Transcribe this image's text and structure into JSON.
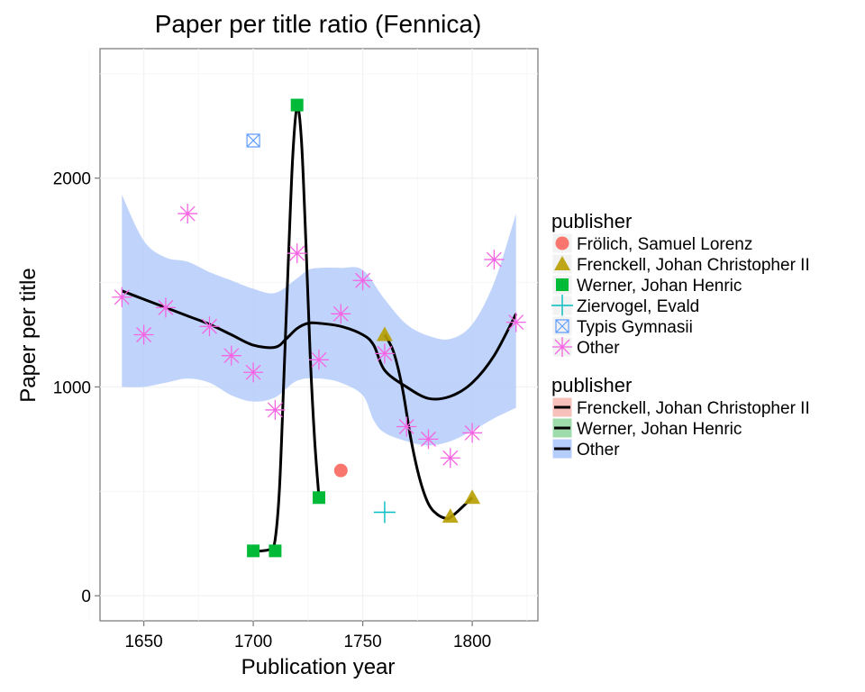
{
  "chart_data": {
    "type": "scatter",
    "title": "Paper per title ratio (Fennica)",
    "xlabel": "Publication year",
    "ylabel": "Paper per title",
    "xlim": [
      1630,
      1830
    ],
    "ylim": [
      -120,
      2620
    ],
    "x_ticks": [
      1650,
      1700,
      1750,
      1800
    ],
    "y_ticks": [
      0,
      1000,
      2000
    ],
    "grid": true,
    "legend_placement": "right",
    "colors": {
      "frolich": "#f8766d",
      "frenckell": "#b79f00",
      "werner": "#00ba38",
      "ziervogel": "#00bfc4",
      "typis": "#619cff",
      "other": "#f564e3",
      "band": "#b5cdfa",
      "line": "#000000"
    },
    "legend_points": {
      "title": "publisher",
      "entries": [
        {
          "label": "Frölich, Samuel Lorenz",
          "shape": "circle",
          "color": "#f8766d"
        },
        {
          "label": "Frenckell, Johan Christopher II",
          "shape": "triangle",
          "color": "#b79f00"
        },
        {
          "label": "Werner, Johan Henric",
          "shape": "square",
          "color": "#00ba38"
        },
        {
          "label": "Ziervogel, Evald",
          "shape": "plus",
          "color": "#00bfc4"
        },
        {
          "label": "Typis Gymnasii",
          "shape": "boxcross",
          "color": "#619cff"
        },
        {
          "label": "Other",
          "shape": "asterisk",
          "color": "#f564e3"
        }
      ]
    },
    "legend_lines": {
      "title": "publisher",
      "entries": [
        {
          "label": "Frenckell, Johan Christopher II",
          "fill": "#f8c0bb"
        },
        {
          "label": "Werner, Johan Henric",
          "fill": "#9fdcac"
        },
        {
          "label": "Other",
          "fill": "#b5cdfa"
        }
      ]
    },
    "series": [
      {
        "name": "Frölich, Samuel Lorenz",
        "shape": "circle",
        "points": [
          [
            1740,
            600
          ]
        ]
      },
      {
        "name": "Frenckell, Johan Christopher II",
        "shape": "triangle",
        "points": [
          [
            1760,
            1250
          ],
          [
            1790,
            380
          ],
          [
            1800,
            470
          ]
        ]
      },
      {
        "name": "Werner, Johan Henric",
        "shape": "square",
        "points": [
          [
            1700,
            215
          ],
          [
            1710,
            215
          ],
          [
            1720,
            2350
          ],
          [
            1730,
            470
          ]
        ]
      },
      {
        "name": "Ziervogel, Evald",
        "shape": "plus",
        "points": [
          [
            1760,
            400
          ]
        ]
      },
      {
        "name": "Typis Gymnasii",
        "shape": "boxcross",
        "points": [
          [
            1700,
            2180
          ]
        ]
      },
      {
        "name": "Other",
        "shape": "asterisk",
        "points": [
          [
            1640,
            1430
          ],
          [
            1650,
            1250
          ],
          [
            1660,
            1380
          ],
          [
            1670,
            1830
          ],
          [
            1680,
            1290
          ],
          [
            1690,
            1150
          ],
          [
            1700,
            1070
          ],
          [
            1710,
            890
          ],
          [
            1720,
            1640
          ],
          [
            1730,
            1130
          ],
          [
            1740,
            1350
          ],
          [
            1750,
            1510
          ],
          [
            1760,
            1160
          ],
          [
            1770,
            810
          ],
          [
            1780,
            750
          ],
          [
            1790,
            660
          ],
          [
            1800,
            780
          ],
          [
            1810,
            1610
          ],
          [
            1820,
            1310
          ]
        ]
      }
    ],
    "smooth": [
      {
        "name": "Other",
        "line": [
          [
            1640,
            1460
          ],
          [
            1650,
            1420
          ],
          [
            1660,
            1380
          ],
          [
            1670,
            1340
          ],
          [
            1680,
            1300
          ],
          [
            1690,
            1250
          ],
          [
            1700,
            1200
          ],
          [
            1710,
            1190
          ],
          [
            1715,
            1230
          ],
          [
            1720,
            1280
          ],
          [
            1725,
            1305
          ],
          [
            1730,
            1305
          ],
          [
            1740,
            1290
          ],
          [
            1750,
            1250
          ],
          [
            1755,
            1200
          ],
          [
            1760,
            1080
          ],
          [
            1770,
            1000
          ],
          [
            1780,
            945
          ],
          [
            1790,
            955
          ],
          [
            1800,
            1020
          ],
          [
            1810,
            1150
          ],
          [
            1820,
            1350
          ]
        ],
        "upper": [
          [
            1640,
            1920
          ],
          [
            1650,
            1700
          ],
          [
            1660,
            1620
          ],
          [
            1670,
            1600
          ],
          [
            1680,
            1550
          ],
          [
            1690,
            1510
          ],
          [
            1700,
            1470
          ],
          [
            1710,
            1450
          ],
          [
            1720,
            1520
          ],
          [
            1725,
            1560
          ],
          [
            1730,
            1570
          ],
          [
            1740,
            1570
          ],
          [
            1750,
            1560
          ],
          [
            1760,
            1420
          ],
          [
            1770,
            1300
          ],
          [
            1780,
            1245
          ],
          [
            1790,
            1230
          ],
          [
            1800,
            1300
          ],
          [
            1810,
            1500
          ],
          [
            1820,
            1830
          ]
        ],
        "lower": [
          [
            1820,
            900
          ],
          [
            1810,
            850
          ],
          [
            1800,
            790
          ],
          [
            1790,
            740
          ],
          [
            1780,
            720
          ],
          [
            1770,
            740
          ],
          [
            1760,
            780
          ],
          [
            1755,
            840
          ],
          [
            1750,
            960
          ],
          [
            1740,
            1020
          ],
          [
            1730,
            1040
          ],
          [
            1720,
            1030
          ],
          [
            1710,
            950
          ],
          [
            1700,
            930
          ],
          [
            1690,
            960
          ],
          [
            1680,
            1020
          ],
          [
            1670,
            1040
          ],
          [
            1660,
            1020
          ],
          [
            1650,
            1000
          ],
          [
            1640,
            1000
          ]
        ]
      },
      {
        "name": "Werner, Johan Henric",
        "line": [
          [
            1700,
            215
          ],
          [
            1704,
            215
          ],
          [
            1708,
            225
          ],
          [
            1710,
            270
          ],
          [
            1712,
            520
          ],
          [
            1714,
            1050
          ],
          [
            1716,
            1600
          ],
          [
            1718,
            2100
          ],
          [
            1720,
            2340
          ],
          [
            1722,
            2180
          ],
          [
            1724,
            1700
          ],
          [
            1726,
            1150
          ],
          [
            1728,
            750
          ],
          [
            1730,
            470
          ]
        ]
      },
      {
        "name": "Frenckell, Johan Christopher II",
        "line": [
          [
            1760,
            1250
          ],
          [
            1764,
            1170
          ],
          [
            1768,
            1000
          ],
          [
            1772,
            750
          ],
          [
            1776,
            560
          ],
          [
            1780,
            440
          ],
          [
            1784,
            390
          ],
          [
            1788,
            370
          ],
          [
            1790,
            375
          ],
          [
            1794,
            410
          ],
          [
            1798,
            450
          ],
          [
            1800,
            470
          ]
        ]
      }
    ]
  }
}
